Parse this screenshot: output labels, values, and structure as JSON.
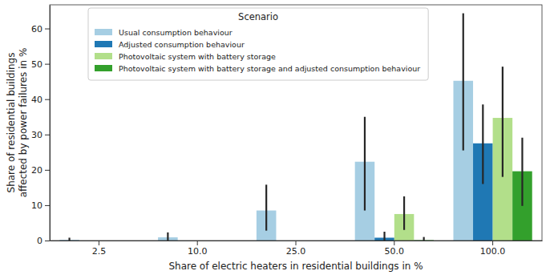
{
  "chart_data": {
    "type": "bar",
    "x_label": "Share of electric heaters in residential buildings in %",
    "y_label": [
      "Share of residential buildings",
      "affected by power failures in %"
    ],
    "categories": [
      "2.5",
      "10.0",
      "25.0",
      "50.0",
      "100.0"
    ],
    "legend_title": "Scenario",
    "legend": "upper left",
    "grid": false,
    "ylim": [
      0,
      66.7
    ],
    "yticks": [
      0,
      10,
      20,
      30,
      40,
      50,
      60
    ],
    "series": [
      {
        "name": "Usual consumption behaviour",
        "color": "#a6cee3",
        "values": [
          0.2,
          0.9,
          8.5,
          22.3,
          45.2
        ],
        "ci_low": [
          0,
          0,
          2.8,
          8.5,
          25.5
        ],
        "ci_high": [
          0.8,
          2.3,
          15.8,
          35.0,
          64.3
        ]
      },
      {
        "name": "Adjusted consumption behaviour",
        "color": "#1f78b4",
        "values": [
          0,
          0,
          0,
          0.8,
          27.5
        ],
        "ci_low": [
          null,
          null,
          null,
          0,
          16.0
        ],
        "ci_high": [
          null,
          null,
          null,
          2.5,
          38.5
        ]
      },
      {
        "name": "Photovoltaic system with battery storage",
        "color": "#b2df8a",
        "values": [
          0,
          0,
          0,
          7.5,
          34.7
        ],
        "ci_low": [
          null,
          null,
          null,
          3.0,
          18.0
        ],
        "ci_high": [
          null,
          null,
          null,
          12.5,
          49.2
        ]
      },
      {
        "name": "Photovoltaic system with battery storage and adjusted consumption behaviour",
        "color": "#33a02c",
        "values": [
          0,
          0,
          0,
          0.1,
          19.6
        ],
        "ci_low": [
          null,
          null,
          null,
          0,
          9.8
        ],
        "ci_high": [
          null,
          null,
          null,
          1.0,
          29.1
        ]
      }
    ]
  }
}
